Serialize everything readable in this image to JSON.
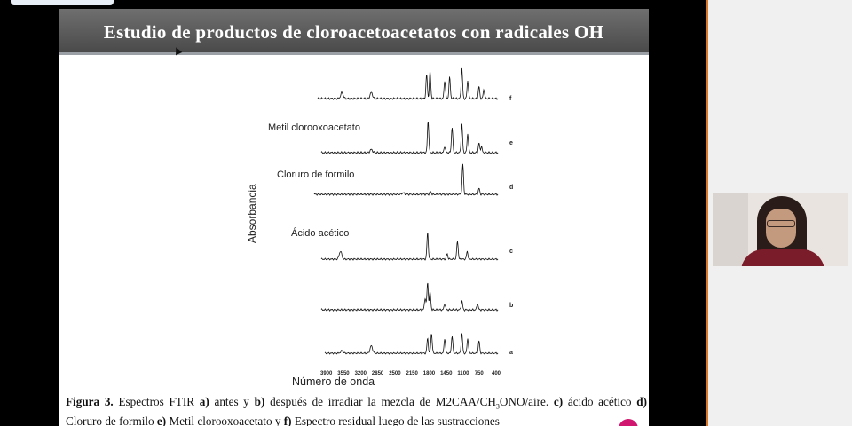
{
  "slide": {
    "title": "Estudio de productos de cloroacetoacetatos con radicales OH"
  },
  "figure": {
    "y_axis_label": "Absorbancia",
    "x_axis_label": "Número de onda",
    "x_ticks": [
      "3900",
      "3550",
      "3200",
      "2850",
      "2500",
      "2150",
      "1800",
      "1450",
      "1100",
      "750",
      "400"
    ],
    "panel_letters": [
      "f",
      "e",
      "d",
      "c",
      "b",
      "a"
    ],
    "annotations": [
      "Metil clorooxoacetato",
      "Cloruro de formilo",
      "Ácido acético"
    ]
  },
  "chart_data": {
    "type": "line",
    "title": "",
    "xlabel": "Número de onda",
    "ylabel": "Absorbancia",
    "xlim": [
      3900,
      400
    ],
    "x_ticks": [
      3900,
      3550,
      3200,
      2850,
      2500,
      2150,
      1800,
      1450,
      1100,
      750,
      400
    ],
    "series": [
      {
        "name": "f",
        "peaks": [
          [
            3550,
            0.2
          ],
          [
            2950,
            0.2
          ],
          [
            1820,
            0.8
          ],
          [
            1750,
            0.9
          ],
          [
            1450,
            0.6
          ],
          [
            1350,
            0.7
          ],
          [
            1100,
            1.0
          ],
          [
            980,
            0.6
          ],
          [
            750,
            0.4
          ],
          [
            650,
            0.3
          ]
        ]
      },
      {
        "name": "e",
        "peaks": [
          [
            2950,
            0.1
          ],
          [
            1790,
            1.0
          ],
          [
            1450,
            0.2
          ],
          [
            1300,
            0.8
          ],
          [
            1100,
            0.9
          ],
          [
            980,
            0.6
          ],
          [
            750,
            0.3
          ],
          [
            700,
            0.2
          ]
        ]
      },
      {
        "name": "d",
        "peaks": [
          [
            2300,
            0.05
          ],
          [
            1740,
            0.1
          ],
          [
            1080,
            1.0
          ],
          [
            750,
            0.2
          ]
        ]
      },
      {
        "name": "c",
        "peaks": [
          [
            3580,
            0.3
          ],
          [
            1800,
            1.0
          ],
          [
            1400,
            0.2
          ],
          [
            1190,
            0.7
          ],
          [
            990,
            0.3
          ]
        ]
      },
      {
        "name": "b",
        "peaks": [
          [
            1850,
            0.4
          ],
          [
            1800,
            0.9
          ],
          [
            1750,
            0.6
          ],
          [
            1450,
            0.2
          ],
          [
            1100,
            0.3
          ],
          [
            780,
            0.2
          ]
        ]
      },
      {
        "name": "a",
        "peaks": [
          [
            3550,
            0.1
          ],
          [
            2950,
            0.3
          ],
          [
            1800,
            0.6
          ],
          [
            1720,
            0.8
          ],
          [
            1450,
            0.6
          ],
          [
            1300,
            0.7
          ],
          [
            1100,
            0.8
          ],
          [
            980,
            0.6
          ],
          [
            750,
            0.5
          ]
        ]
      }
    ]
  },
  "caption": {
    "fig_label": "Figura 3.",
    "p1": " Espectros FTIR ",
    "a": "a)",
    "p2": " antes y ",
    "b": "b)",
    "p3": " después de irradiar la mezcla de M2CAA/CH",
    "sub": "3",
    "p4": "ONO/aire. ",
    "c": "c)",
    "p5": " ácido acético ",
    "d": "d)",
    "p6": " Cloruro de formilo ",
    "e": "e)",
    "p7": " Metil clorooxoacetato y ",
    "f": "f)",
    "p8": " Espectro residual luego de las sustracciones"
  },
  "colors": {
    "title_bar": "#5a5a5a",
    "slide_edge": "#d87a2a",
    "marker": "#d0166e"
  }
}
